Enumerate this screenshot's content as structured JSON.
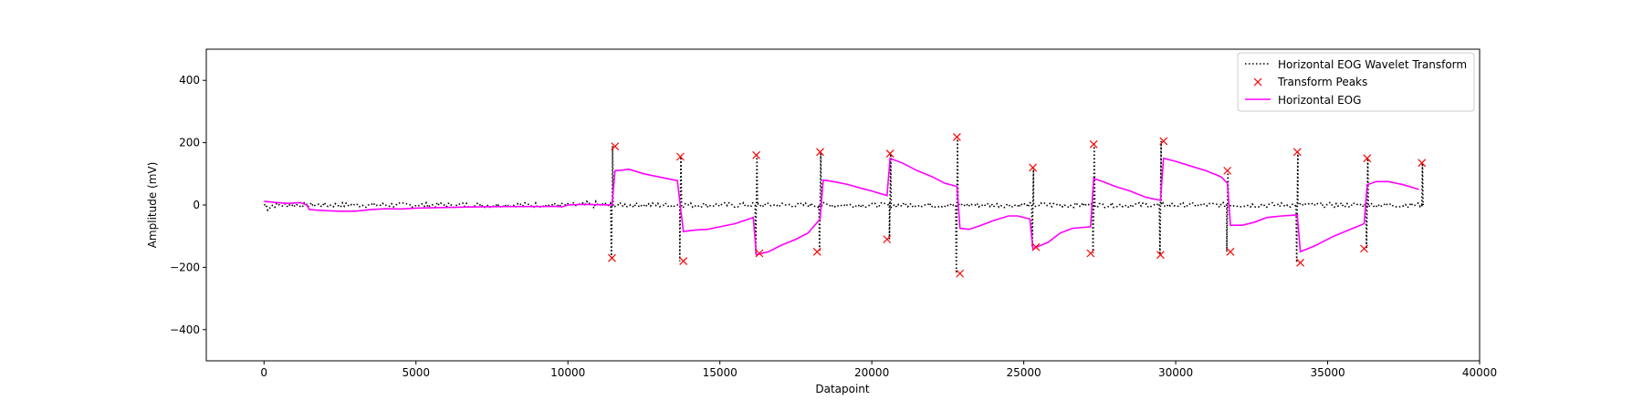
{
  "chart_data": {
    "type": "line",
    "xlabel": "Datapoint",
    "ylabel": "Amplitude (mV)",
    "xlim": [
      -1900,
      40000
    ],
    "ylim": [
      -500,
      500
    ],
    "xticks": [
      0,
      5000,
      10000,
      15000,
      20000,
      25000,
      30000,
      35000,
      40000
    ],
    "yticks": [
      -400,
      -200,
      0,
      200,
      400
    ],
    "grid": false,
    "legend_position": "top-right",
    "colors": {
      "transform": "#000000",
      "peaks": "#ff0000",
      "eog": "#ff00ff"
    },
    "series": [
      {
        "name": "Horizontal EOG Wavelet Transform",
        "style": "dotted",
        "noise_amplitude": 8,
        "events": [
          {
            "x": 11450,
            "trough": -170,
            "peak": 190
          },
          {
            "x": 13700,
            "trough": -180,
            "peak": 155
          },
          {
            "x": 16200,
            "trough": -155,
            "peak": 160
          },
          {
            "x": 18300,
            "trough": -150,
            "peak": 170
          },
          {
            "x": 20600,
            "trough": -110,
            "peak": 165
          },
          {
            "x": 22800,
            "trough": -220,
            "peak": 218
          },
          {
            "x": 25300,
            "trough": -135,
            "peak": 120
          },
          {
            "x": 27300,
            "trough": -155,
            "peak": 195
          },
          {
            "x": 29500,
            "trough": -160,
            "peak": 205
          },
          {
            "x": 31700,
            "trough": -150,
            "peak": 110
          },
          {
            "x": 34000,
            "trough": -185,
            "peak": 170
          },
          {
            "x": 36300,
            "trough": -140,
            "peak": 150
          },
          {
            "x": 38100,
            "trough": 0,
            "peak": 135
          }
        ]
      },
      {
        "name": "Transform Peaks",
        "style": "marker-x",
        "points": [
          [
            11550,
            188
          ],
          [
            11450,
            -170
          ],
          [
            13700,
            155
          ],
          [
            13800,
            -180
          ],
          [
            16200,
            160
          ],
          [
            16300,
            -155
          ],
          [
            18300,
            170
          ],
          [
            18200,
            -150
          ],
          [
            20600,
            165
          ],
          [
            20500,
            -110
          ],
          [
            22800,
            218
          ],
          [
            22900,
            -220
          ],
          [
            25300,
            120
          ],
          [
            25400,
            -135
          ],
          [
            27300,
            195
          ],
          [
            27200,
            -155
          ],
          [
            29600,
            205
          ],
          [
            29500,
            -160
          ],
          [
            31700,
            110
          ],
          [
            31800,
            -150
          ],
          [
            34000,
            170
          ],
          [
            34100,
            -185
          ],
          [
            36300,
            150
          ],
          [
            36200,
            -140
          ],
          [
            38100,
            135
          ]
        ]
      },
      {
        "name": "Horizontal EOG",
        "style": "solid",
        "points": [
          [
            0,
            12
          ],
          [
            400,
            8
          ],
          [
            800,
            5
          ],
          [
            1200,
            8
          ],
          [
            1400,
            0
          ],
          [
            1500,
            -15
          ],
          [
            2000,
            -18
          ],
          [
            2500,
            -20
          ],
          [
            3000,
            -20
          ],
          [
            3500,
            -15
          ],
          [
            4000,
            -12
          ],
          [
            4500,
            -13
          ],
          [
            5000,
            -10
          ],
          [
            6000,
            -8
          ],
          [
            7000,
            -6
          ],
          [
            8000,
            -5
          ],
          [
            9000,
            -5
          ],
          [
            9600,
            -4
          ],
          [
            9800,
            -6
          ],
          [
            10000,
            0
          ],
          [
            10500,
            2
          ],
          [
            11000,
            1
          ],
          [
            11450,
            0
          ],
          [
            11550,
            110
          ],
          [
            11800,
            112
          ],
          [
            12000,
            115
          ],
          [
            12500,
            100
          ],
          [
            13000,
            90
          ],
          [
            13600,
            78
          ],
          [
            13800,
            -85
          ],
          [
            14200,
            -80
          ],
          [
            14600,
            -78
          ],
          [
            15000,
            -70
          ],
          [
            15500,
            -60
          ],
          [
            16100,
            -40
          ],
          [
            16200,
            -160
          ],
          [
            16600,
            -150
          ],
          [
            17000,
            -130
          ],
          [
            17500,
            -110
          ],
          [
            17900,
            -90
          ],
          [
            18300,
            -45
          ],
          [
            18400,
            80
          ],
          [
            18800,
            74
          ],
          [
            19200,
            66
          ],
          [
            19600,
            55
          ],
          [
            20000,
            45
          ],
          [
            20500,
            30
          ],
          [
            20600,
            150
          ],
          [
            21000,
            135
          ],
          [
            21500,
            110
          ],
          [
            22000,
            90
          ],
          [
            22400,
            70
          ],
          [
            22800,
            60
          ],
          [
            22900,
            -75
          ],
          [
            23200,
            -78
          ],
          [
            23600,
            -65
          ],
          [
            24000,
            -50
          ],
          [
            24500,
            -35
          ],
          [
            24800,
            -35
          ],
          [
            25200,
            -45
          ],
          [
            25300,
            -140
          ],
          [
            25800,
            -120
          ],
          [
            26200,
            -90
          ],
          [
            26600,
            -75
          ],
          [
            27200,
            -70
          ],
          [
            27300,
            85
          ],
          [
            27600,
            75
          ],
          [
            28000,
            60
          ],
          [
            28500,
            45
          ],
          [
            29000,
            25
          ],
          [
            29500,
            15
          ],
          [
            29600,
            150
          ],
          [
            30000,
            140
          ],
          [
            30500,
            125
          ],
          [
            31000,
            110
          ],
          [
            31500,
            90
          ],
          [
            31700,
            70
          ],
          [
            31800,
            -65
          ],
          [
            32200,
            -65
          ],
          [
            32600,
            -55
          ],
          [
            33000,
            -40
          ],
          [
            33500,
            -35
          ],
          [
            34000,
            -32
          ],
          [
            34100,
            -150
          ],
          [
            34600,
            -130
          ],
          [
            35200,
            -100
          ],
          [
            35700,
            -80
          ],
          [
            36200,
            -60
          ],
          [
            36300,
            65
          ],
          [
            36600,
            75
          ],
          [
            37000,
            75
          ],
          [
            37500,
            65
          ],
          [
            38000,
            50
          ]
        ]
      }
    ]
  }
}
